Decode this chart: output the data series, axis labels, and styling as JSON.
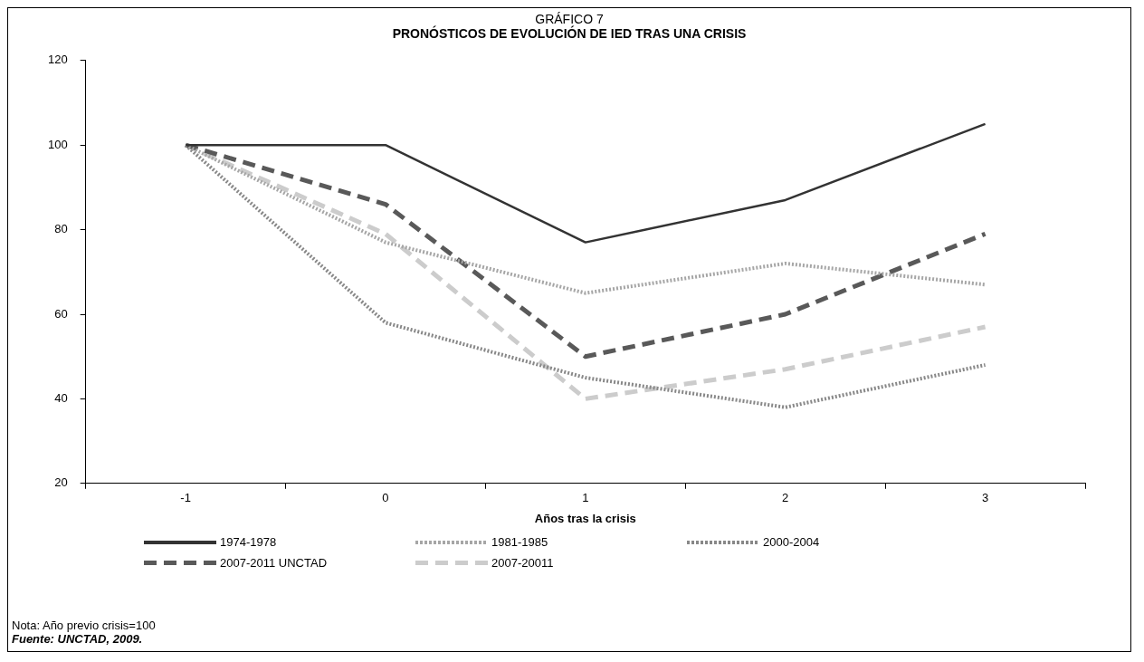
{
  "chart_data": {
    "type": "line",
    "subtitle": "GRÁFICO 7",
    "title": "PRONÓSTICOS DE EVOLUCIÓN DE IED TRAS UNA CRISIS",
    "xlabel": "Años tras la crisis",
    "categories": [
      "-1",
      "0",
      "1",
      "2",
      "3"
    ],
    "series": [
      {
        "name": "1974-1978",
        "color": "#333333",
        "line_style": "solid",
        "values": [
          100,
          100,
          77,
          87,
          105
        ]
      },
      {
        "name": "1981-1985",
        "color": "#a6a6a6",
        "line_style": "dotted",
        "values": [
          100,
          77,
          65,
          72,
          67
        ]
      },
      {
        "name": "2000-2004",
        "color": "#888888",
        "line_style": "dotted",
        "values": [
          100,
          58,
          45,
          38,
          48
        ]
      },
      {
        "name": "2007-2011 UNCTAD",
        "color": "#595959",
        "line_style": "dashed",
        "values": [
          100,
          86,
          50,
          60,
          79
        ]
      },
      {
        "name": "2007-20011",
        "color": "#cccccc",
        "line_style": "dashed",
        "values": [
          100,
          79,
          40,
          47,
          57
        ]
      }
    ],
    "ylim": [
      20,
      120
    ],
    "yticks": [
      20,
      40,
      60,
      80,
      100,
      120
    ],
    "grid": false,
    "legend": "bottom",
    "annotations": [
      "Nota: Año previo crisis=100",
      "Fuente: UNCTAD, 2009."
    ]
  }
}
